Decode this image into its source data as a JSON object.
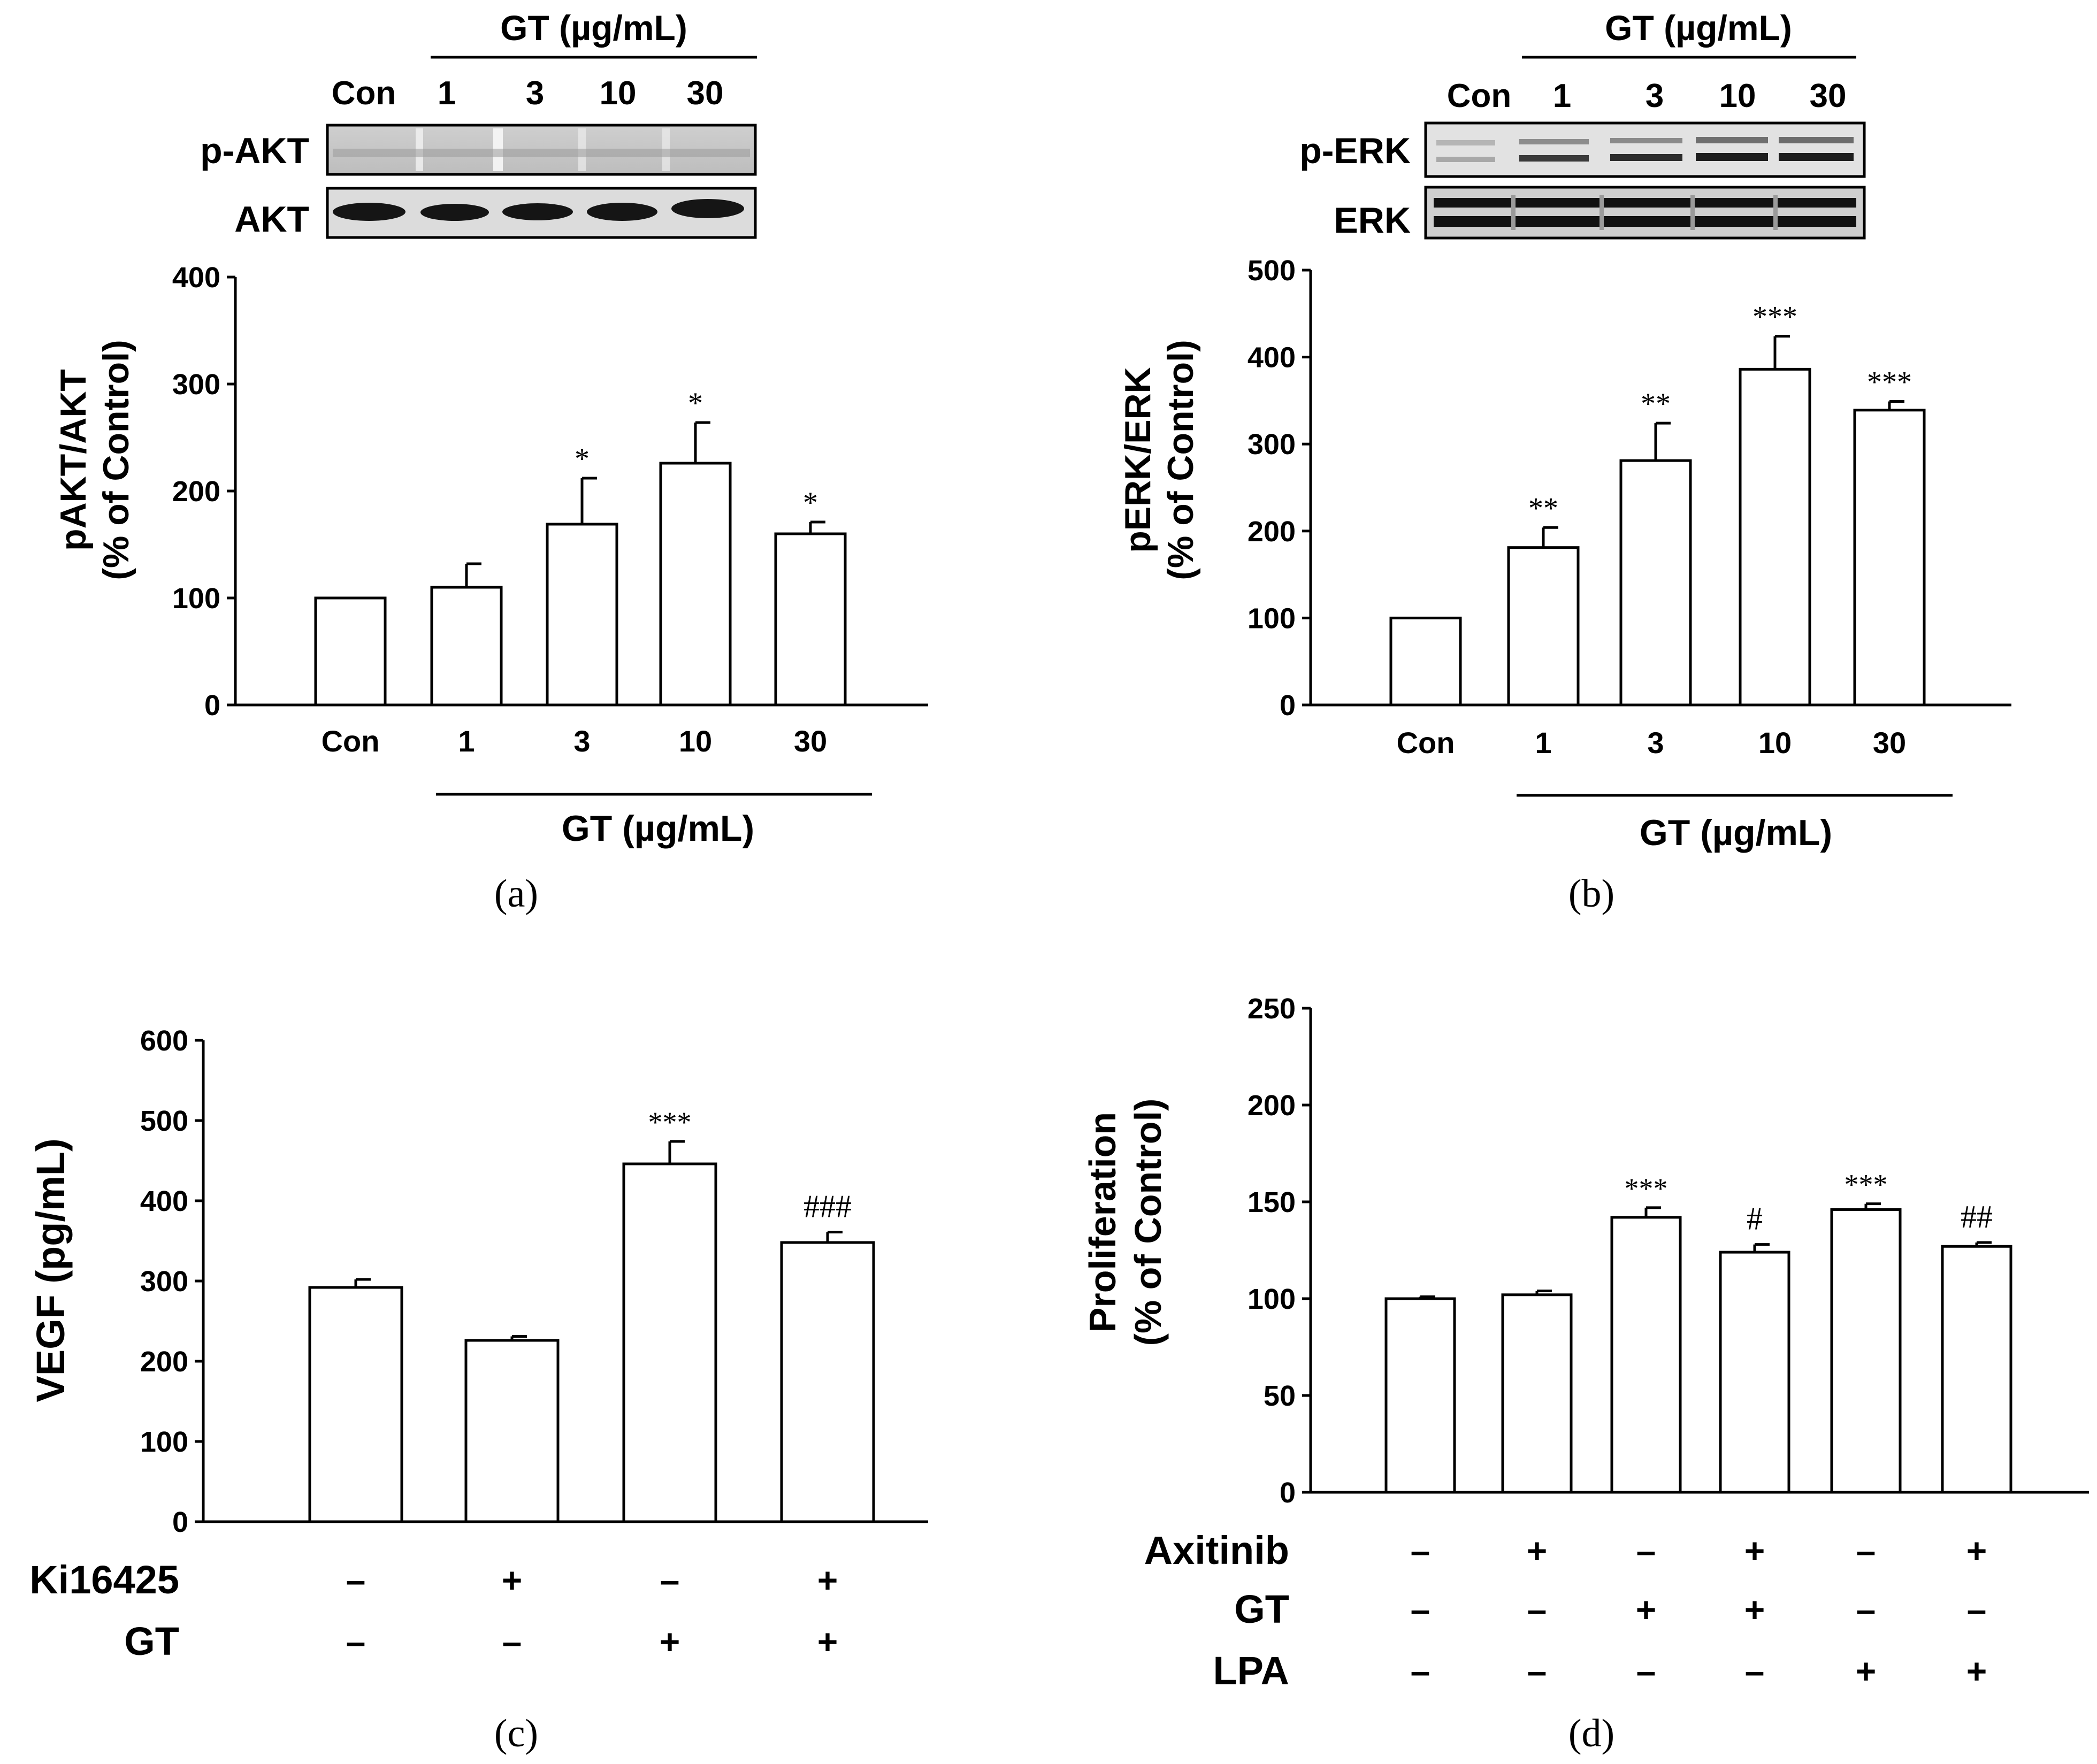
{
  "panels": [
    {
      "caption": "(a)",
      "blot": {
        "group_label": "GT (µg/mL)",
        "lanes": [
          "Con",
          "1",
          "3",
          "10",
          "30"
        ],
        "rows": [
          "p-AKT",
          "AKT"
        ]
      }
    },
    {
      "caption": "(b)",
      "blot": {
        "group_label": "GT (µg/mL)",
        "lanes": [
          "Con",
          "1",
          "3",
          "10",
          "30"
        ],
        "rows": [
          "p-ERK",
          "ERK"
        ]
      }
    },
    {
      "caption": "(c)"
    },
    {
      "caption": "(d)"
    }
  ],
  "chart_data": [
    {
      "type": "bar",
      "title": "",
      "categories": [
        "Con",
        "1",
        "3",
        "10",
        "30"
      ],
      "values": [
        100,
        110,
        169,
        226,
        160
      ],
      "errors": [
        0,
        22,
        43,
        38,
        11
      ],
      "annotations": [
        "",
        "",
        "*",
        "*",
        "*"
      ],
      "ylim": [
        0,
        400
      ],
      "yticks": [
        0,
        100,
        200,
        300,
        400
      ],
      "ylabel_lines": [
        "pAKT/AKT",
        "(% of Control)"
      ],
      "xlabel": "GT (µg/mL)"
    },
    {
      "type": "bar",
      "title": "",
      "categories": [
        "Con",
        "1",
        "3",
        "10",
        "30"
      ],
      "values": [
        100,
        181,
        281,
        386,
        339
      ],
      "errors": [
        0,
        23,
        43,
        38,
        10
      ],
      "annotations": [
        "",
        "**",
        "**",
        "***",
        "***"
      ],
      "ylim": [
        0,
        500
      ],
      "yticks": [
        0,
        100,
        200,
        300,
        400,
        500
      ],
      "ylabel_lines": [
        "pERK/ERK",
        "(% of Control)"
      ],
      "xlabel": "GT (µg/mL)"
    },
    {
      "type": "bar",
      "title": "",
      "values": [
        292,
        226,
        446,
        348
      ],
      "errors": [
        10,
        5,
        28,
        13
      ],
      "annotations": [
        "",
        "",
        "***",
        "###"
      ],
      "ylim": [
        0,
        600
      ],
      "yticks": [
        0,
        100,
        200,
        300,
        400,
        500,
        600
      ],
      "ylabel_lines": [
        "VEGF (pg/mL)"
      ],
      "treatments": [
        {
          "name": "Ki16425",
          "signs": [
            "–",
            "+",
            "–",
            "+"
          ]
        },
        {
          "name": "GT",
          "signs": [
            "–",
            "–",
            "+",
            "+"
          ]
        }
      ]
    },
    {
      "type": "bar",
      "title": "",
      "values": [
        100,
        102,
        142,
        124,
        146,
        127
      ],
      "errors": [
        1,
        2,
        5,
        4,
        3,
        2
      ],
      "annotations": [
        "",
        "",
        "***",
        "#",
        "***",
        "##"
      ],
      "ylim": [
        0,
        250
      ],
      "yticks": [
        0,
        50,
        100,
        150,
        200,
        250
      ],
      "ylabel_lines": [
        "Proliferation",
        "(% of Control)"
      ],
      "treatments": [
        {
          "name": "Axitinib",
          "signs": [
            "–",
            "+",
            "–",
            "+",
            "–",
            "+"
          ]
        },
        {
          "name": "GT",
          "signs": [
            "–",
            "–",
            "+",
            "+",
            "–",
            "–"
          ]
        },
        {
          "name": "LPA",
          "signs": [
            "–",
            "–",
            "–",
            "–",
            "+",
            "+"
          ]
        }
      ]
    }
  ]
}
